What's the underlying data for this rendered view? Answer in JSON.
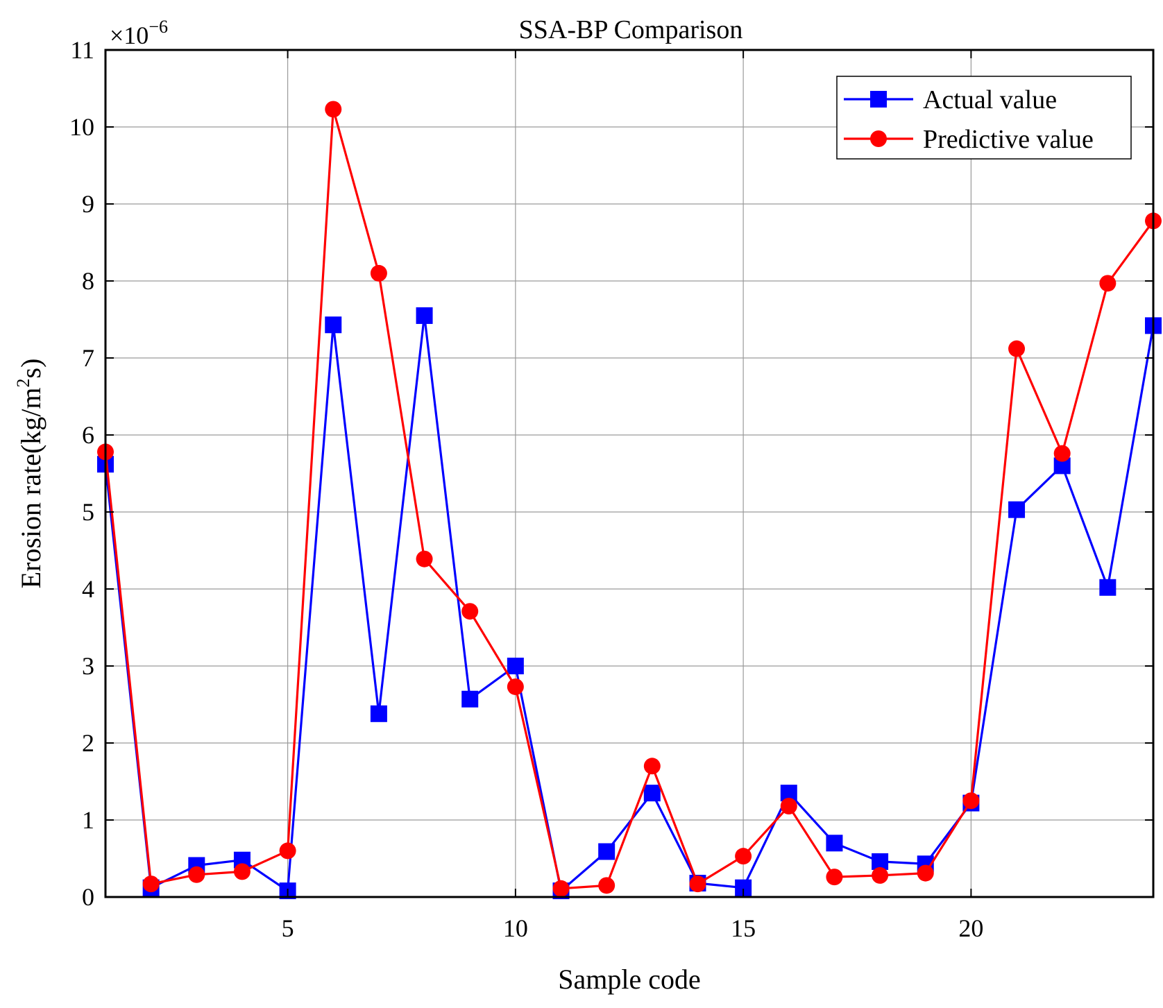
{
  "chart_data": {
    "type": "line",
    "title": "SSA-BP Comparison",
    "xlabel": "Sample code",
    "ylabel_main": "Erosion rate(kg/m",
    "ylabel_sup": "2",
    "ylabel_end": "s)",
    "scale_base": "×10",
    "scale_exp": "−6",
    "xlim": [
      1,
      24
    ],
    "ylim": [
      0,
      11
    ],
    "xticks": [
      5,
      10,
      15,
      20
    ],
    "yticks": [
      0,
      1,
      2,
      3,
      4,
      5,
      6,
      7,
      8,
      9,
      10,
      11
    ],
    "grid": true,
    "legend_position": "top-right",
    "x": [
      1,
      2,
      3,
      4,
      5,
      6,
      7,
      8,
      9,
      10,
      11,
      12,
      13,
      14,
      15,
      16,
      17,
      18,
      19,
      20,
      21,
      22,
      23,
      24
    ],
    "series": [
      {
        "name": "Actual value",
        "color": "#0000ff",
        "marker": "square",
        "values": [
          5.62,
          0.12,
          0.41,
          0.48,
          0.08,
          7.43,
          2.38,
          7.55,
          2.57,
          3.0,
          0.08,
          0.59,
          1.35,
          0.18,
          0.12,
          1.35,
          0.7,
          0.46,
          0.43,
          1.22,
          5.03,
          5.6,
          4.02,
          7.42
        ]
      },
      {
        "name": "Predictive value",
        "color": "#ff0000",
        "marker": "circle",
        "values": [
          5.78,
          0.17,
          0.29,
          0.33,
          0.6,
          10.23,
          8.1,
          4.39,
          3.71,
          2.73,
          0.11,
          0.15,
          1.7,
          0.17,
          0.53,
          1.18,
          0.26,
          0.28,
          0.31,
          1.25,
          7.12,
          5.76,
          7.97,
          8.78
        ]
      }
    ]
  }
}
